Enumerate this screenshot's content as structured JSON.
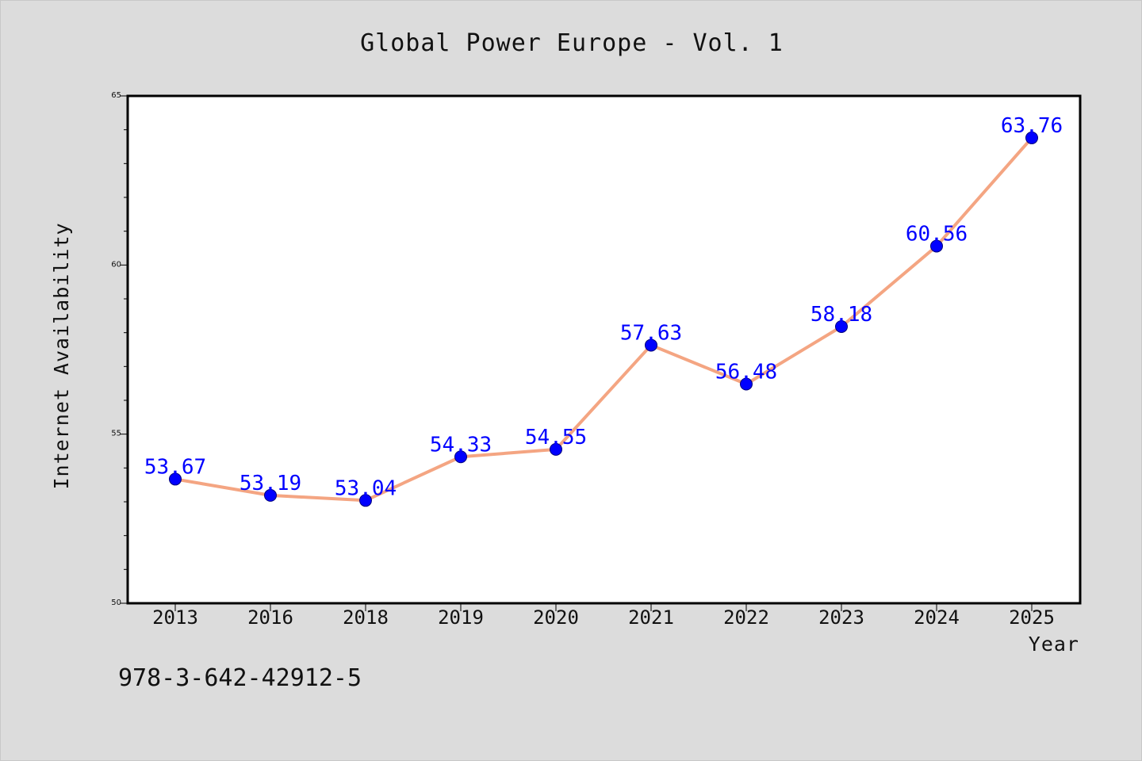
{
  "chart_data": {
    "type": "line",
    "title": "Global Power Europe - Vol. 1",
    "xlabel": "Year",
    "ylabel": "Internet Availability",
    "categories": [
      "2013",
      "2016",
      "2018",
      "2019",
      "2020",
      "2021",
      "2022",
      "2023",
      "2024",
      "2025"
    ],
    "series": [
      {
        "values": [
          53.67,
          53.19,
          53.04,
          54.33,
          54.55,
          57.63,
          56.48,
          58.18,
          60.56,
          63.76
        ],
        "data_labels": [
          "53.67",
          "53.19",
          "53.04",
          "54.33",
          "54.55",
          "57.63",
          "56.48",
          "58.18",
          "60.56",
          "63.76"
        ]
      }
    ],
    "ylim": [
      50,
      65
    ],
    "yticks": [
      "50",
      "55",
      "60",
      "65"
    ],
    "grid": false,
    "line_color": "#f4a582",
    "marker_color": "#0000ff",
    "label_color": "#0000ff"
  },
  "footer": {
    "isbn": "978-3-642-42912-5"
  }
}
